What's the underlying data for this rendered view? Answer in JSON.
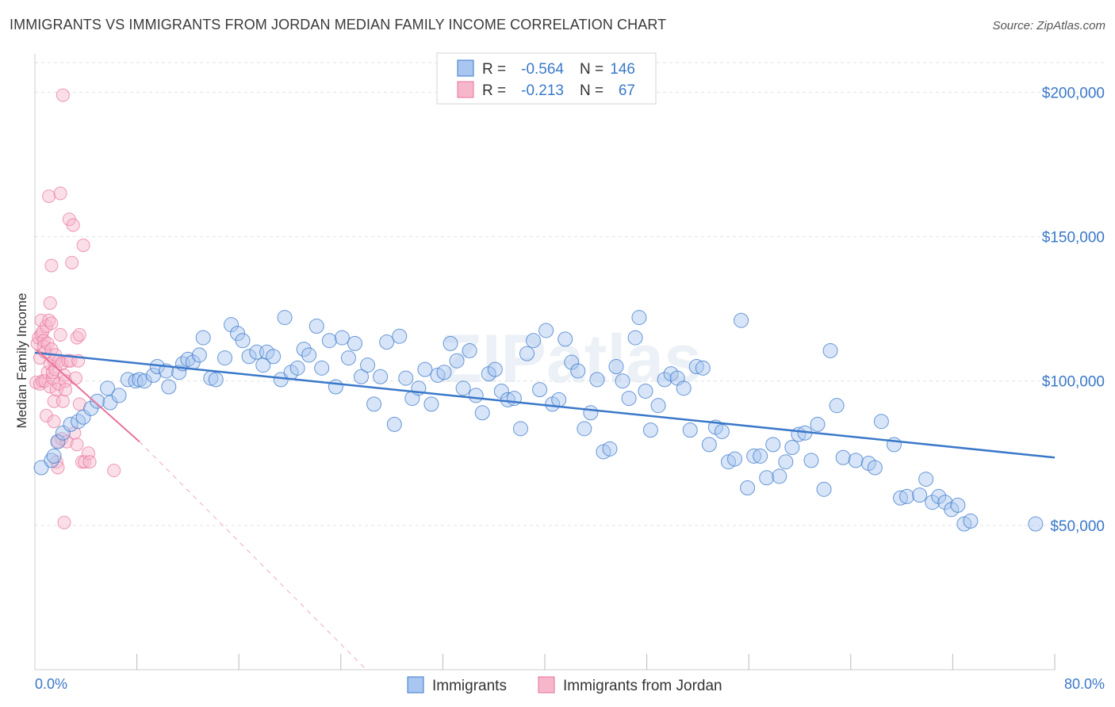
{
  "title": "IMMIGRANTS VS IMMIGRANTS FROM JORDAN MEDIAN FAMILY INCOME CORRELATION CHART",
  "source": "Source: ZipAtlas.com",
  "watermark": "ZIPatlas",
  "colors": {
    "blue": "#3a78c9",
    "pink": "#e8729a",
    "blue_fill": "#a9c6f0",
    "pink_fill": "#f6b7cb"
  },
  "legend": {
    "rows": [
      {
        "r_label": "R =",
        "r_value": "-0.564",
        "n_label": "N =",
        "n_value": "146"
      },
      {
        "r_label": "R =",
        "r_value": "-0.213",
        "n_label": "N =",
        "n_value": "67"
      }
    ]
  },
  "chart_data": {
    "type": "scatter",
    "title": "IMMIGRANTS VS IMMIGRANTS FROM JORDAN MEDIAN FAMILY INCOME CORRELATION CHART",
    "xlabel": "",
    "ylabel": "Median Family Income",
    "xlim": [
      0,
      80
    ],
    "ylim": [
      0,
      210000
    ],
    "x_tick_labels": [
      "0.0%",
      "80.0%"
    ],
    "y_ticks": [
      50000,
      100000,
      150000,
      200000
    ],
    "y_tick_labels": [
      "$50,000",
      "$100,000",
      "$150,000",
      "$200,000"
    ],
    "grid": true,
    "legend_position": "top-center",
    "series": [
      {
        "name": "Immigrants",
        "color": "#3a78c9",
        "trend": {
          "x": [
            0,
            80
          ],
          "y": [
            109800,
            73500
          ]
        },
        "points": [
          [
            0.5,
            70000
          ],
          [
            1.3,
            72500
          ],
          [
            1.5,
            74000
          ],
          [
            1.8,
            79000
          ],
          [
            2.2,
            82000
          ],
          [
            2.8,
            85000
          ],
          [
            3.4,
            86000
          ],
          [
            3.8,
            87500
          ],
          [
            4.4,
            90500
          ],
          [
            4.9,
            93000
          ],
          [
            5.7,
            97500
          ],
          [
            5.9,
            92500
          ],
          [
            6.6,
            95000
          ],
          [
            7.3,
            100500
          ],
          [
            7.9,
            100000
          ],
          [
            8.2,
            100500
          ],
          [
            8.6,
            100000
          ],
          [
            9.3,
            102000
          ],
          [
            9.6,
            105000
          ],
          [
            10.3,
            103500
          ],
          [
            10.5,
            98000
          ],
          [
            11.3,
            103000
          ],
          [
            11.6,
            106000
          ],
          [
            12.0,
            107500
          ],
          [
            12.4,
            106500
          ],
          [
            12.9,
            109000
          ],
          [
            13.2,
            115000
          ],
          [
            13.8,
            101000
          ],
          [
            14.2,
            100500
          ],
          [
            14.9,
            108000
          ],
          [
            15.4,
            119500
          ],
          [
            15.9,
            116500
          ],
          [
            16.3,
            114000
          ],
          [
            16.8,
            108500
          ],
          [
            17.4,
            110000
          ],
          [
            17.9,
            105500
          ],
          [
            18.2,
            110000
          ],
          [
            18.7,
            108500
          ],
          [
            19.3,
            100500
          ],
          [
            19.6,
            122000
          ],
          [
            20.1,
            103000
          ],
          [
            20.6,
            104500
          ],
          [
            21.1,
            111000
          ],
          [
            21.5,
            109000
          ],
          [
            22.1,
            119000
          ],
          [
            22.5,
            104500
          ],
          [
            23.1,
            114000
          ],
          [
            23.6,
            98000
          ],
          [
            24.1,
            115000
          ],
          [
            24.6,
            108000
          ],
          [
            25.1,
            113000
          ],
          [
            25.6,
            101500
          ],
          [
            26.1,
            105500
          ],
          [
            26.6,
            92000
          ],
          [
            27.1,
            101500
          ],
          [
            27.6,
            113500
          ],
          [
            28.2,
            85000
          ],
          [
            28.6,
            115500
          ],
          [
            29.1,
            101000
          ],
          [
            29.6,
            94000
          ],
          [
            30.1,
            97500
          ],
          [
            30.6,
            104000
          ],
          [
            31.1,
            92000
          ],
          [
            31.6,
            102000
          ],
          [
            32.1,
            103000
          ],
          [
            32.6,
            113000
          ],
          [
            33.1,
            107000
          ],
          [
            33.6,
            97500
          ],
          [
            34.1,
            110500
          ],
          [
            34.6,
            95000
          ],
          [
            35.1,
            89000
          ],
          [
            35.6,
            102500
          ],
          [
            36.1,
            104000
          ],
          [
            36.6,
            96500
          ],
          [
            37.1,
            93500
          ],
          [
            37.6,
            94000
          ],
          [
            38.1,
            83500
          ],
          [
            38.6,
            109500
          ],
          [
            39.1,
            114000
          ],
          [
            39.6,
            97000
          ],
          [
            40.1,
            117500
          ],
          [
            40.6,
            92000
          ],
          [
            41.1,
            93500
          ],
          [
            41.6,
            114500
          ],
          [
            42.1,
            106500
          ],
          [
            42.6,
            103500
          ],
          [
            43.1,
            83500
          ],
          [
            43.6,
            89000
          ],
          [
            44.1,
            100500
          ],
          [
            44.6,
            75500
          ],
          [
            45.1,
            76500
          ],
          [
            45.6,
            105000
          ],
          [
            46.1,
            100000
          ],
          [
            46.6,
            94000
          ],
          [
            47.1,
            115000
          ],
          [
            47.4,
            122000
          ],
          [
            47.9,
            96500
          ],
          [
            48.3,
            83000
          ],
          [
            48.9,
            91500
          ],
          [
            49.4,
            100500
          ],
          [
            49.9,
            102500
          ],
          [
            50.4,
            101000
          ],
          [
            50.9,
            97500
          ],
          [
            51.4,
            83000
          ],
          [
            51.9,
            105000
          ],
          [
            52.4,
            104500
          ],
          [
            52.9,
            78000
          ],
          [
            53.4,
            84000
          ],
          [
            53.9,
            82500
          ],
          [
            54.4,
            72000
          ],
          [
            54.9,
            73000
          ],
          [
            55.4,
            121000
          ],
          [
            55.9,
            63000
          ],
          [
            56.4,
            74000
          ],
          [
            56.9,
            74000
          ],
          [
            57.4,
            66500
          ],
          [
            57.9,
            78000
          ],
          [
            58.4,
            67000
          ],
          [
            58.9,
            72000
          ],
          [
            59.4,
            77000
          ],
          [
            59.9,
            81500
          ],
          [
            60.4,
            82000
          ],
          [
            60.9,
            72500
          ],
          [
            61.4,
            85000
          ],
          [
            61.9,
            62500
          ],
          [
            62.4,
            110500
          ],
          [
            62.9,
            91500
          ],
          [
            63.4,
            73500
          ],
          [
            64.4,
            72500
          ],
          [
            65.4,
            71500
          ],
          [
            65.9,
            70000
          ],
          [
            66.4,
            86000
          ],
          [
            67.4,
            78000
          ],
          [
            67.9,
            59500
          ],
          [
            68.4,
            60000
          ],
          [
            69.4,
            60500
          ],
          [
            69.9,
            66000
          ],
          [
            70.4,
            58000
          ],
          [
            70.9,
            60000
          ],
          [
            71.4,
            58000
          ],
          [
            71.9,
            55500
          ],
          [
            72.4,
            57000
          ],
          [
            72.9,
            50500
          ],
          [
            73.4,
            51500
          ],
          [
            78.5,
            50500
          ]
        ]
      },
      {
        "name": "Immigrants from Jordan",
        "color": "#e8729a",
        "trend": {
          "x": [
            0.1,
            8.2
          ],
          "y": [
            110800,
            79000
          ]
        },
        "trend_extension": {
          "x": [
            8.2,
            26.0
          ],
          "y": [
            79000,
            0
          ]
        },
        "points": [
          [
            0.1,
            99500
          ],
          [
            0.2,
            113000
          ],
          [
            0.3,
            115000
          ],
          [
            0.4,
            108000
          ],
          [
            0.4,
            99000
          ],
          [
            0.5,
            116000
          ],
          [
            0.5,
            121000
          ],
          [
            0.6,
            100000
          ],
          [
            0.6,
            117000
          ],
          [
            0.7,
            114000
          ],
          [
            0.7,
            112000
          ],
          [
            0.8,
            110000
          ],
          [
            0.8,
            100000
          ],
          [
            0.9,
            119000
          ],
          [
            0.9,
            88000
          ],
          [
            1.0,
            103000
          ],
          [
            1.0,
            113000
          ],
          [
            1.1,
            121000
          ],
          [
            1.1,
            164000
          ],
          [
            1.2,
            106000
          ],
          [
            1.2,
            98000
          ],
          [
            1.2,
            127000
          ],
          [
            1.3,
            111000
          ],
          [
            1.3,
            120000
          ],
          [
            1.3,
            140000
          ],
          [
            1.4,
            101000
          ],
          [
            1.4,
            103000
          ],
          [
            1.5,
            86000
          ],
          [
            1.5,
            107000
          ],
          [
            1.5,
            93000
          ],
          [
            1.6,
            104000
          ],
          [
            1.6,
            109000
          ],
          [
            1.7,
            72000
          ],
          [
            1.7,
            97000
          ],
          [
            1.8,
            70000
          ],
          [
            1.8,
            79000
          ],
          [
            1.9,
            107000
          ],
          [
            1.9,
            99000
          ],
          [
            2.0,
            116000
          ],
          [
            2.0,
            165000
          ],
          [
            2.1,
            80000
          ],
          [
            2.1,
            106000
          ],
          [
            2.2,
            93000
          ],
          [
            2.3,
            102000
          ],
          [
            2.4,
            100000
          ],
          [
            2.4,
            97000
          ],
          [
            2.5,
            79000
          ],
          [
            2.6,
            107000
          ],
          [
            2.7,
            156000
          ],
          [
            2.8,
            107000
          ],
          [
            2.9,
            141000
          ],
          [
            3.0,
            154000
          ],
          [
            3.1,
            82000
          ],
          [
            3.2,
            101000
          ],
          [
            3.3,
            115000
          ],
          [
            3.3,
            78000
          ],
          [
            3.4,
            107000
          ],
          [
            3.5,
            116000
          ],
          [
            3.5,
            92000
          ],
          [
            3.7,
            72000
          ],
          [
            3.8,
            147000
          ],
          [
            3.9,
            72000
          ],
          [
            4.2,
            75000
          ],
          [
            4.3,
            72000
          ],
          [
            6.2,
            69000
          ],
          [
            2.2,
            199000
          ],
          [
            2.3,
            51000
          ]
        ]
      }
    ]
  },
  "bottom_legend": [
    "Immigrants",
    "Immigrants from Jordan"
  ]
}
